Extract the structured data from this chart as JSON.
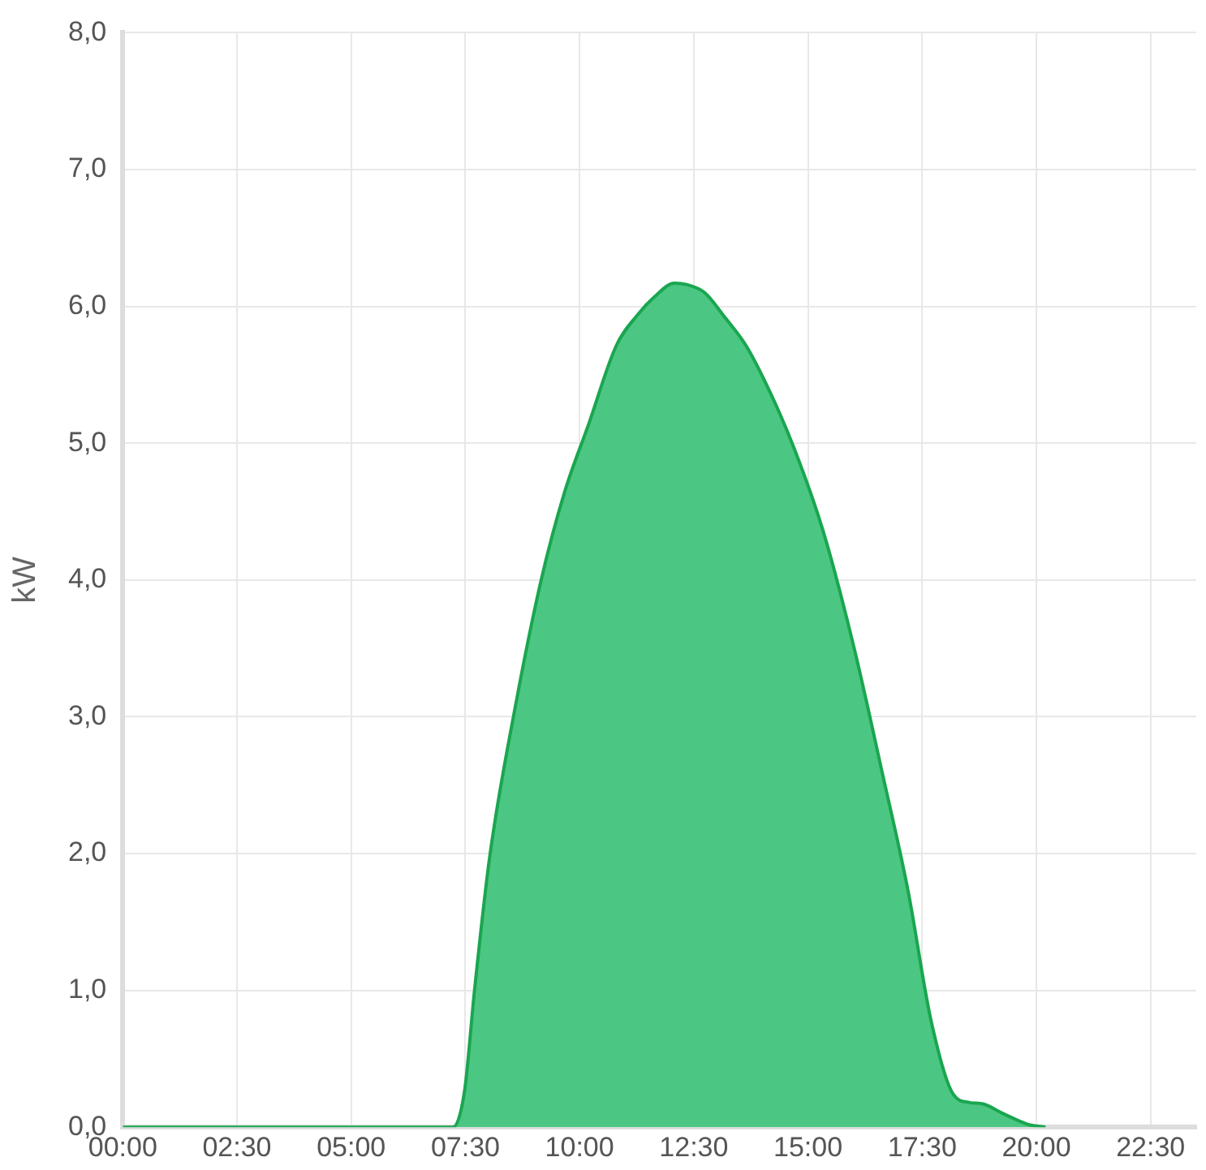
{
  "chart_data": {
    "type": "area",
    "ylabel": "kW",
    "x": [
      0,
      7.23,
      7.48,
      7.7,
      8.03,
      8.58,
      9.16,
      9.67,
      10.2,
      10.8,
      11.3,
      11.64,
      12.08,
      12.34,
      12.74,
      13.18,
      13.65,
      14.16,
      14.7,
      15.33,
      15.99,
      16.64,
      17.19,
      17.7,
      18.18,
      18.54,
      18.83,
      19.27,
      19.82,
      20.2
    ],
    "series": [
      {
        "color": "#4cc683",
        "values": [
          0,
          0,
          0.26,
          1.0,
          1.97,
          3.05,
          4.0,
          4.64,
          5.14,
          5.71,
          5.95,
          6.07,
          6.17,
          6.16,
          6.1,
          5.92,
          5.71,
          5.38,
          4.96,
          4.36,
          3.53,
          2.57,
          1.73,
          0.77,
          0.24,
          0.18,
          0.17,
          0.1,
          0.02,
          0
        ]
      }
    ],
    "xlim": [
      0,
      23.5
    ],
    "xticks": [
      {
        "value": 0,
        "label": "00:00"
      },
      {
        "value": 2.5,
        "label": "02:30"
      },
      {
        "value": 5,
        "label": "05:00"
      },
      {
        "value": 7.5,
        "label": "07:30"
      },
      {
        "value": 10,
        "label": "10:00"
      },
      {
        "value": 12.5,
        "label": "12:30"
      },
      {
        "value": 15,
        "label": "15:00"
      },
      {
        "value": 17.5,
        "label": "17:30"
      },
      {
        "value": 20,
        "label": "20:00"
      },
      {
        "value": 22.5,
        "label": "22:30"
      }
    ],
    "ylim": [
      0,
      8
    ],
    "yticks": [
      {
        "value": 0,
        "label": "0,0"
      },
      {
        "value": 1,
        "label": "1,0"
      },
      {
        "value": 2,
        "label": "2,0"
      },
      {
        "value": 3,
        "label": "3,0"
      },
      {
        "value": 4,
        "label": "4,0"
      },
      {
        "value": 5,
        "label": "5,0"
      },
      {
        "value": 6,
        "label": "6,0"
      },
      {
        "value": 7,
        "label": "7,0"
      },
      {
        "value": 8,
        "label": "8,0"
      }
    ],
    "grid": true,
    "legend": false
  }
}
